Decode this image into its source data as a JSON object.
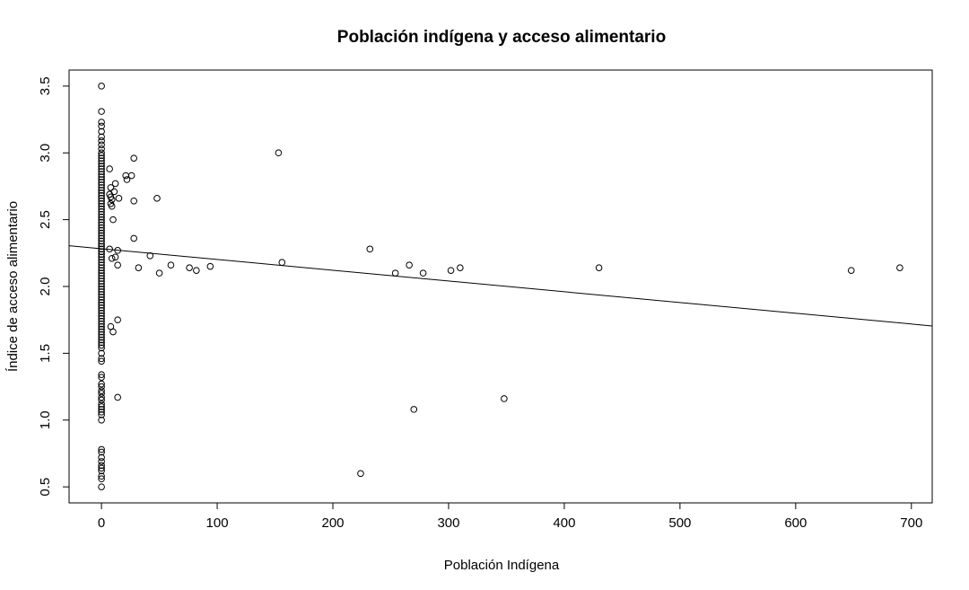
{
  "chart_data": {
    "type": "scatter",
    "title": "Población indígena y acceso alimentario",
    "xlabel": "Población Indígena",
    "ylabel": "Índice de acceso alimentario",
    "xlim": [
      -28,
      718
    ],
    "ylim": [
      0.38,
      3.62
    ],
    "xticks": [
      0,
      100,
      200,
      300,
      400,
      500,
      600,
      700
    ],
    "yticks": [
      0.5,
      1.0,
      1.5,
      2.0,
      2.5,
      3.0,
      3.5
    ],
    "xtick_labels": [
      "0",
      "100",
      "200",
      "300",
      "400",
      "500",
      "600",
      "700"
    ],
    "ytick_labels": [
      "0.5",
      "1.0",
      "1.5",
      "2.0",
      "2.5",
      "3.0",
      "3.5"
    ],
    "grid": false,
    "legend": "none",
    "regression_line": {
      "intercept": 2.2825,
      "slope": -0.000805
    },
    "points": [
      [
        0,
        3.5
      ],
      [
        0,
        3.31
      ],
      [
        0,
        3.23
      ],
      [
        0,
        3.2
      ],
      [
        0,
        3.16
      ],
      [
        0,
        3.12
      ],
      [
        0,
        3.09
      ],
      [
        0,
        3.06
      ],
      [
        0,
        3.03
      ],
      [
        0,
        3.0
      ],
      [
        0,
        2.98
      ],
      [
        0,
        2.96
      ],
      [
        0,
        2.94
      ],
      [
        0,
        2.92
      ],
      [
        0,
        2.9
      ],
      [
        0,
        2.88
      ],
      [
        0,
        2.86
      ],
      [
        0,
        2.84
      ],
      [
        0,
        2.82
      ],
      [
        0,
        2.8
      ],
      [
        0,
        2.78
      ],
      [
        0,
        2.76
      ],
      [
        0,
        2.74
      ],
      [
        0,
        2.72
      ],
      [
        0,
        2.7
      ],
      [
        0,
        2.68
      ],
      [
        0,
        2.66
      ],
      [
        0,
        2.64
      ],
      [
        0,
        2.62
      ],
      [
        0,
        2.6
      ],
      [
        0,
        2.58
      ],
      [
        0,
        2.56
      ],
      [
        0,
        2.54
      ],
      [
        0,
        2.52
      ],
      [
        0,
        2.5
      ],
      [
        0,
        2.48
      ],
      [
        0,
        2.46
      ],
      [
        0,
        2.44
      ],
      [
        0,
        2.42
      ],
      [
        0,
        2.4
      ],
      [
        0,
        2.38
      ],
      [
        0,
        2.36
      ],
      [
        0,
        2.34
      ],
      [
        0,
        2.32
      ],
      [
        0,
        2.3
      ],
      [
        0,
        2.28
      ],
      [
        0,
        2.26
      ],
      [
        0,
        2.24
      ],
      [
        0,
        2.22
      ],
      [
        0,
        2.2
      ],
      [
        0,
        2.18
      ],
      [
        0,
        2.16
      ],
      [
        0,
        2.14
      ],
      [
        0,
        2.12
      ],
      [
        0,
        2.1
      ],
      [
        0,
        2.08
      ],
      [
        0,
        2.06
      ],
      [
        0,
        2.04
      ],
      [
        0,
        2.02
      ],
      [
        0,
        2.0
      ],
      [
        0,
        1.98
      ],
      [
        0,
        1.96
      ],
      [
        0,
        1.94
      ],
      [
        0,
        1.92
      ],
      [
        0,
        1.9
      ],
      [
        0,
        1.88
      ],
      [
        0,
        1.86
      ],
      [
        0,
        1.84
      ],
      [
        0,
        1.82
      ],
      [
        0,
        1.8
      ],
      [
        0,
        1.78
      ],
      [
        0,
        1.76
      ],
      [
        0,
        1.74
      ],
      [
        0,
        1.72
      ],
      [
        0,
        1.7
      ],
      [
        0,
        1.68
      ],
      [
        0,
        1.66
      ],
      [
        0,
        1.64
      ],
      [
        0,
        1.62
      ],
      [
        0,
        1.6
      ],
      [
        0,
        1.58
      ],
      [
        0,
        1.56
      ],
      [
        0,
        1.54
      ],
      [
        0,
        1.5
      ],
      [
        0,
        1.46
      ],
      [
        0,
        1.44
      ],
      [
        0,
        1.34
      ],
      [
        0,
        1.32
      ],
      [
        0,
        1.27
      ],
      [
        0,
        1.25
      ],
      [
        0,
        1.22
      ],
      [
        0,
        1.2
      ],
      [
        0,
        1.17
      ],
      [
        0,
        1.15
      ],
      [
        0,
        1.12
      ],
      [
        0,
        1.1
      ],
      [
        0,
        1.08
      ],
      [
        0,
        1.06
      ],
      [
        0,
        1.04
      ],
      [
        0,
        1.0
      ],
      [
        0,
        0.78
      ],
      [
        0,
        0.76
      ],
      [
        0,
        0.72
      ],
      [
        0,
        0.69
      ],
      [
        0,
        0.66
      ],
      [
        0,
        0.64
      ],
      [
        0,
        0.62
      ],
      [
        0,
        0.58
      ],
      [
        0,
        0.56
      ],
      [
        0,
        0.5
      ],
      [
        7,
        2.88
      ],
      [
        8,
        2.74
      ],
      [
        7,
        2.69
      ],
      [
        8,
        2.67
      ],
      [
        9,
        2.65
      ],
      [
        8,
        2.62
      ],
      [
        9,
        2.6
      ],
      [
        11,
        2.71
      ],
      [
        12,
        2.77
      ],
      [
        15,
        2.66
      ],
      [
        10,
        2.5
      ],
      [
        7,
        2.28
      ],
      [
        9,
        2.21
      ],
      [
        12,
        2.22
      ],
      [
        14,
        2.27
      ],
      [
        14,
        2.16
      ],
      [
        8,
        1.7
      ],
      [
        10,
        1.66
      ],
      [
        14,
        1.75
      ],
      [
        14,
        1.17
      ],
      [
        21,
        2.83
      ],
      [
        22,
        2.8
      ],
      [
        26,
        2.83
      ],
      [
        28,
        2.96
      ],
      [
        28,
        2.64
      ],
      [
        28,
        2.36
      ],
      [
        32,
        2.14
      ],
      [
        42,
        2.23
      ],
      [
        48,
        2.66
      ],
      [
        50,
        2.1
      ],
      [
        60,
        2.16
      ],
      [
        76,
        2.14
      ],
      [
        82,
        2.12
      ],
      [
        94,
        2.15
      ],
      [
        153,
        3.0
      ],
      [
        156,
        2.18
      ],
      [
        224,
        0.6
      ],
      [
        232,
        2.28
      ],
      [
        254,
        2.1
      ],
      [
        266,
        2.16
      ],
      [
        270,
        1.08
      ],
      [
        278,
        2.1
      ],
      [
        302,
        2.12
      ],
      [
        310,
        2.14
      ],
      [
        348,
        1.16
      ],
      [
        430,
        2.14
      ],
      [
        648,
        2.12
      ],
      [
        690,
        2.14
      ]
    ]
  }
}
